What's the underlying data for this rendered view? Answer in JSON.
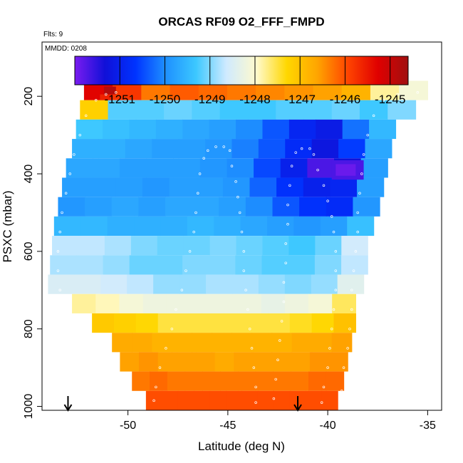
{
  "chart_data": {
    "type": "heatmap",
    "title": "ORCAS RF09 O2_FFF_FMPD",
    "corner_labels": [
      "Flts: 9",
      "MMDD: 0208"
    ],
    "xlabel": "Latitude (deg N)",
    "ylabel": "PSXC (mbar)",
    "xlim": [
      -54.3,
      -34.3
    ],
    "ylim": [
      1010,
      60
    ],
    "xticks": [
      -50,
      -45,
      -40,
      -35
    ],
    "yticks": [
      200,
      400,
      600,
      800,
      1000
    ],
    "colorbar": {
      "range": [
        -1252,
        -1244.6
      ],
      "ticks": [
        -1251,
        -1250,
        -1249,
        -1248,
        -1247,
        -1246,
        -1245
      ],
      "colors": [
        "#7a1cf0",
        "#1010d8",
        "#0033ff",
        "#1e90ff",
        "#3cc8ff",
        "#cfeaff",
        "#fffacd",
        "#ffd700",
        "#ffa500",
        "#ff4500",
        "#e00000",
        "#a01010"
      ]
    },
    "arrows_at_latitude": [
      -53.0,
      -41.5
    ],
    "bins": [
      {
        "p": 185,
        "lat_min": -52.2,
        "lat_max": -35.0,
        "values": [
          -1245.3,
          -1245.8,
          -1246.3,
          -1246.1,
          -1246.2,
          -1246.3,
          -1246.4,
          -1246.5,
          -1246.6,
          -1246.8,
          -1247.8,
          -1248.1
        ]
      },
      {
        "p": 235,
        "lat_min": -52.4,
        "lat_max": -35.6,
        "values": [
          -1247.2,
          -1249.2,
          -1249.2,
          -1249.1,
          -1249.2,
          -1249.3,
          -1249.3,
          -1249.2,
          -1249.2,
          -1249.1,
          -1249.3,
          -1249.0
        ]
      },
      {
        "p": 285,
        "lat_min": -52.6,
        "lat_max": -36.6,
        "values": [
          -1249.3,
          -1249.4,
          -1249.5,
          -1249.6,
          -1249.7,
          -1249.8,
          -1250.0,
          -1250.4,
          -1250.9,
          -1251.1,
          -1250.2,
          -1249.5
        ]
      },
      {
        "p": 335,
        "lat_min": -52.8,
        "lat_max": -36.8,
        "values": [
          -1249.6,
          -1249.6,
          -1249.7,
          -1249.8,
          -1249.8,
          -1249.9,
          -1250.1,
          -1250.4,
          -1250.8,
          -1251.2,
          -1250.6,
          -1249.7
        ]
      },
      {
        "p": 385,
        "lat_min": -53.1,
        "lat_max": -37.0,
        "values": [
          -1249.7,
          -1249.7,
          -1249.8,
          -1249.8,
          -1249.8,
          -1249.9,
          -1250.0,
          -1250.5,
          -1251.0,
          -1251.7,
          -1251.3,
          -1249.8
        ]
      },
      {
        "p": 435,
        "lat_min": -53.3,
        "lat_max": -37.2,
        "values": [
          -1249.8,
          -1249.8,
          -1249.8,
          -1249.9,
          -1249.8,
          -1249.8,
          -1249.9,
          -1250.3,
          -1250.7,
          -1251.0,
          -1250.9,
          -1249.8
        ]
      },
      {
        "p": 485,
        "lat_min": -53.5,
        "lat_max": -37.4,
        "values": [
          -1249.9,
          -1249.8,
          -1249.7,
          -1249.8,
          -1249.7,
          -1249.7,
          -1249.8,
          -1250.0,
          -1250.4,
          -1250.7,
          -1250.8,
          -1249.9
        ]
      },
      {
        "p": 535,
        "lat_min": -53.7,
        "lat_max": -37.7,
        "values": [
          -1249.5,
          -1249.5,
          -1249.6,
          -1249.6,
          -1249.6,
          -1249.5,
          -1249.6,
          -1249.7,
          -1249.8,
          -1249.9,
          -1249.8,
          -1249.4
        ]
      },
      {
        "p": 585,
        "lat_min": -53.8,
        "lat_max": -38.0,
        "values": [
          -1248.7,
          -1248.7,
          -1248.8,
          -1249.0,
          -1249.1,
          -1249.1,
          -1249.0,
          -1249.1,
          -1249.2,
          -1249.3,
          -1249.1,
          -1248.6
        ]
      },
      {
        "p": 635,
        "lat_min": -53.9,
        "lat_max": -38.0,
        "values": [
          -1248.8,
          -1248.8,
          -1248.9,
          -1249.1,
          -1249.1,
          -1249.0,
          -1249.0,
          -1249.1,
          -1249.2,
          -1249.2,
          -1249.0,
          -1248.7
        ]
      },
      {
        "p": 685,
        "lat_min": -54.0,
        "lat_max": -38.2,
        "values": [
          -1248.5,
          -1248.5,
          -1248.6,
          -1248.7,
          -1248.9,
          -1248.9,
          -1248.8,
          -1248.8,
          -1248.9,
          -1249.0,
          -1248.9,
          -1248.4
        ]
      },
      {
        "p": 735,
        "lat_min": -52.8,
        "lat_max": -38.6,
        "values": [
          -1247.8,
          -1247.9,
          -1248.1,
          -1248.2,
          -1248.2,
          -1248.2,
          -1248.2,
          -1248.2,
          -1248.3,
          -1248.2,
          -1248.1,
          -1247.6
        ]
      },
      {
        "p": 785,
        "lat_min": -51.8,
        "lat_max": -38.6,
        "values": [
          -1247.1,
          -1247.2,
          -1247.3,
          -1247.5,
          -1247.5,
          -1247.5,
          -1247.5,
          -1247.5,
          -1247.5,
          -1247.4,
          -1247.3,
          -1247.0
        ]
      },
      {
        "p": 835,
        "lat_min": -50.8,
        "lat_max": -38.8,
        "values": [
          -1246.7,
          -1246.7,
          -1246.8,
          -1246.8,
          -1246.8,
          -1246.8,
          -1246.8,
          -1246.8,
          -1246.8,
          -1246.7,
          -1246.7,
          -1246.6
        ]
      },
      {
        "p": 885,
        "lat_min": -50.4,
        "lat_max": -39.0,
        "values": [
          -1246.6,
          -1246.5,
          -1246.6,
          -1246.6,
          -1246.6,
          -1246.7,
          -1246.6,
          -1246.6,
          -1246.6,
          -1246.6,
          -1246.5,
          -1246.5
        ]
      },
      {
        "p": 935,
        "lat_min": -49.8,
        "lat_max": -39.2,
        "values": [
          -1246.3,
          -1246.2,
          -1246.3,
          -1246.3,
          -1246.3,
          -1246.3,
          -1246.3,
          -1246.3,
          -1246.3,
          -1246.3,
          -1246.2,
          -1246.2
        ]
      },
      {
        "p": 985,
        "lat_min": -49.1,
        "lat_max": -39.5,
        "values": [
          -1246.0,
          -1246.0,
          -1246.0,
          -1246.0,
          -1246.0,
          -1246.0,
          -1246.0,
          -1246.0,
          -1246.0,
          -1246.0,
          -1246.0,
          -1246.0
        ]
      }
    ],
    "blobs": [
      {
        "lat": [
          -51.2,
          -50.6
        ],
        "p": [
          175,
          195
        ],
        "value": -1244.8
      },
      {
        "lat": [
          -51.4,
          -50.8
        ],
        "p": [
          195,
          210
        ],
        "value": -1245.6
      },
      {
        "lat": [
          -39.8,
          -38.2
        ],
        "p": [
          365,
          415
        ],
        "value": -1251.7
      },
      {
        "lat": [
          -39.6,
          -38.6
        ],
        "p": [
          375,
          405
        ],
        "value": -1251.9
      }
    ],
    "flight_track_points": [
      [
        -52.8,
        1000
      ],
      [
        -52.9,
        950
      ],
      [
        -53.0,
        900
      ],
      [
        -53.1,
        850
      ],
      [
        -53.2,
        800
      ],
      [
        -53.3,
        750
      ],
      [
        -53.4,
        700
      ],
      [
        -53.5,
        650
      ],
      [
        -53.5,
        600
      ],
      [
        -53.4,
        550
      ],
      [
        -53.3,
        500
      ],
      [
        -53.1,
        450
      ],
      [
        -52.9,
        400
      ],
      [
        -52.7,
        350
      ],
      [
        -52.4,
        300
      ],
      [
        -52.1,
        250
      ],
      [
        -51.6,
        210
      ],
      [
        -51.1,
        195
      ],
      [
        -50.6,
        190
      ],
      [
        -48.7,
        985
      ],
      [
        -48.6,
        950
      ],
      [
        -48.4,
        900
      ],
      [
        -48.1,
        850
      ],
      [
        -47.8,
        800
      ],
      [
        -47.6,
        750
      ],
      [
        -47.3,
        700
      ],
      [
        -47.1,
        650
      ],
      [
        -46.9,
        600
      ],
      [
        -46.7,
        550
      ],
      [
        -46.6,
        500
      ],
      [
        -46.5,
        450
      ],
      [
        -46.4,
        400
      ],
      [
        -46.2,
        360
      ],
      [
        -46.0,
        340
      ],
      [
        -45.6,
        330
      ],
      [
        -45.2,
        330
      ],
      [
        -44.9,
        340
      ],
      [
        -44.8,
        380
      ],
      [
        -44.6,
        420
      ],
      [
        -44.5,
        460
      ],
      [
        -44.4,
        500
      ],
      [
        -44.3,
        550
      ],
      [
        -44.2,
        600
      ],
      [
        -44.2,
        650
      ],
      [
        -44.1,
        700
      ],
      [
        -44.0,
        750
      ],
      [
        -43.9,
        800
      ],
      [
        -43.8,
        850
      ],
      [
        -43.7,
        900
      ],
      [
        -43.6,
        950
      ],
      [
        -43.6,
        990
      ],
      [
        -42.7,
        980
      ],
      [
        -42.6,
        930
      ],
      [
        -42.5,
        880
      ],
      [
        -42.4,
        830
      ],
      [
        -42.3,
        780
      ],
      [
        -42.2,
        730
      ],
      [
        -42.2,
        680
      ],
      [
        -42.1,
        630
      ],
      [
        -42.1,
        580
      ],
      [
        -42.0,
        530
      ],
      [
        -42.0,
        480
      ],
      [
        -41.9,
        430
      ],
      [
        -41.8,
        380
      ],
      [
        -41.6,
        345
      ],
      [
        -41.3,
        335
      ],
      [
        -40.9,
        335
      ],
      [
        -40.7,
        350
      ],
      [
        -40.5,
        390
      ],
      [
        -40.2,
        430
      ],
      [
        -40.0,
        470
      ],
      [
        -39.8,
        510
      ],
      [
        -39.7,
        550
      ],
      [
        -39.6,
        600
      ],
      [
        -39.6,
        650
      ],
      [
        -39.6,
        700
      ],
      [
        -39.7,
        750
      ],
      [
        -39.8,
        800
      ],
      [
        -39.9,
        850
      ],
      [
        -40.0,
        900
      ],
      [
        -40.2,
        950
      ],
      [
        -40.3,
        990
      ],
      [
        -39.3,
        960
      ],
      [
        -39.2,
        900
      ],
      [
        -39.0,
        850
      ],
      [
        -38.9,
        800
      ],
      [
        -38.8,
        750
      ],
      [
        -38.8,
        700
      ],
      [
        -38.7,
        650
      ],
      [
        -38.6,
        600
      ],
      [
        -38.5,
        550
      ],
      [
        -38.5,
        500
      ],
      [
        -38.4,
        450
      ],
      [
        -38.3,
        400
      ],
      [
        -38.2,
        350
      ],
      [
        -38.0,
        300
      ],
      [
        -37.7,
        250
      ],
      [
        -37.2,
        210
      ],
      [
        -36.5,
        195
      ],
      [
        -35.5,
        190
      ]
    ]
  }
}
